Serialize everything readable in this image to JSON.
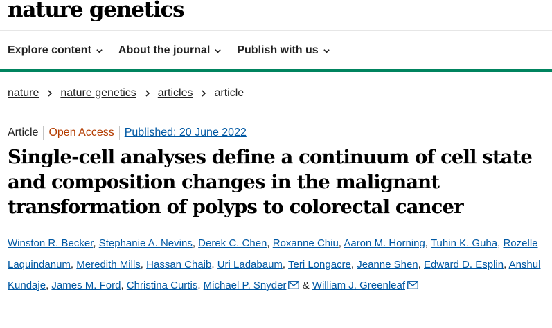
{
  "brand": {
    "logo_text": "nature genetics"
  },
  "nav": {
    "items": [
      {
        "label": "Explore content"
      },
      {
        "label": "About the journal"
      },
      {
        "label": "Publish with us"
      }
    ]
  },
  "breadcrumb": {
    "items": [
      "nature",
      "nature genetics",
      "articles"
    ],
    "current": "article"
  },
  "article_meta": {
    "type": "Article",
    "access": "Open Access",
    "published": "Published: 20 June 2022"
  },
  "article": {
    "title": "Single-cell analyses define a continuum of cell state and composition changes in the malignant transformation of polyps to colorectal cancer"
  },
  "authors": [
    "Winston R. Becker",
    "Stephanie A. Nevins",
    "Derek C. Chen",
    "Roxanne Chiu",
    "Aaron M. Horning",
    "Tuhin K. Guha",
    "Rozelle Laquindanum",
    "Meredith Mills",
    "Hassan Chaib",
    "Uri Ladabaum",
    "Teri Longacre",
    "Jeanne Shen",
    "Edward D. Esplin",
    "Anshul Kundaje",
    "James M. Ford",
    "Christina Curtis",
    "Michael P. Snyder",
    "William J. Greenleaf"
  ],
  "author_separator": ", ",
  "author_conjunction": "&",
  "colors": {
    "accent_green": "#00845f",
    "link_blue": "#0058a3",
    "open_access": "#b33c00"
  },
  "icons": {
    "nav_chevron": "chevron-down-icon",
    "breadcrumb_separator": "chevron-right-icon",
    "corresponding_author": "mail-icon"
  }
}
